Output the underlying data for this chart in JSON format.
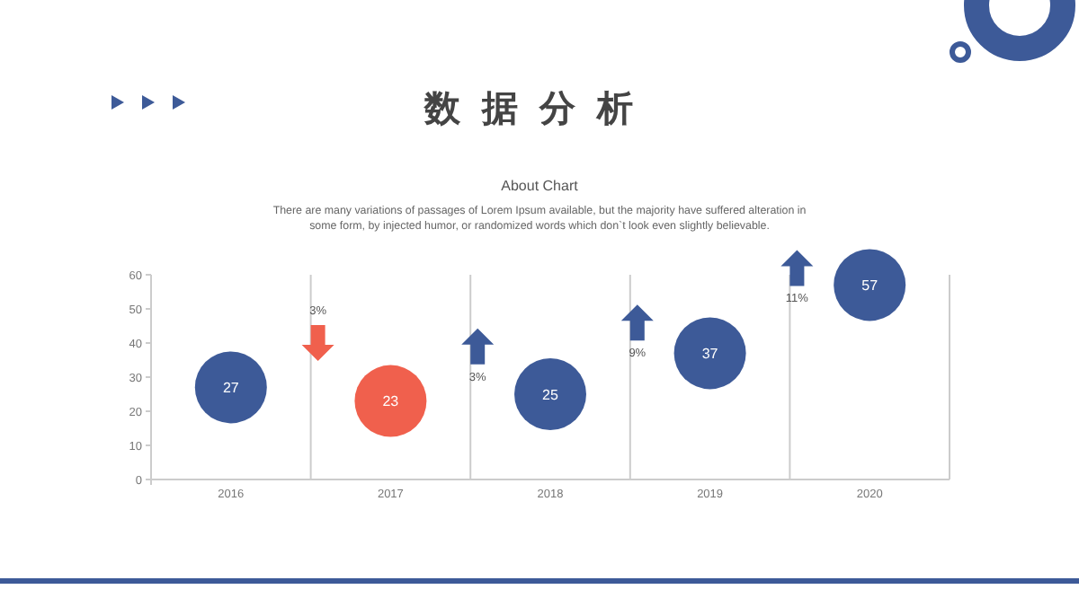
{
  "chart_data": {
    "type": "bubble",
    "title": "数据分析",
    "subtitle": "About Chart",
    "annotations": [
      "There are many variations of passages of Lorem Ipsum available, but the majority have suffered alteration in some form, by injected humor, or randomized words which don`t look even slightly believable.",
      "3%",
      "3%",
      "9%",
      "11%"
    ],
    "categories": [
      "2016",
      "2017",
      "2018",
      "2019",
      "2020"
    ],
    "values": [
      27,
      23,
      25,
      37,
      57
    ],
    "sizes": [
      1,
      1,
      1,
      1,
      1
    ],
    "colors": [
      "#3d5a98",
      "#f0604d",
      "#3d5a98",
      "#3d5a98",
      "#3d5a98"
    ],
    "data_labels": true,
    "ylim": [
      0,
      60
    ],
    "yticks": [
      0,
      10,
      20,
      30,
      40,
      50,
      60
    ],
    "grid": "x"
  }
}
